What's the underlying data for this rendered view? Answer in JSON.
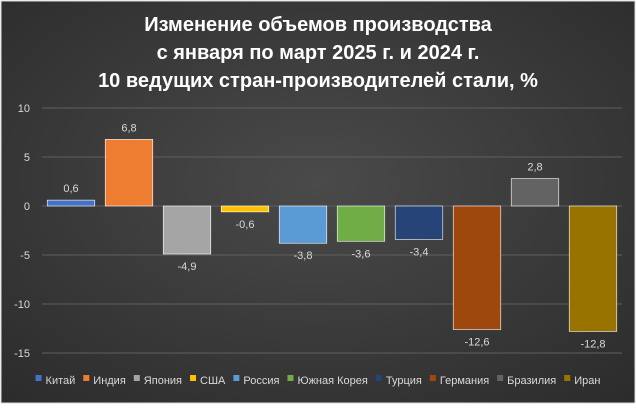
{
  "chart_data": {
    "type": "bar",
    "title": [
      "Изменение объемов производства",
      "с января по март 2025 г. и 2024 г.",
      "10 ведущих стран-производителей стали, %"
    ],
    "xlabel": "",
    "ylabel": "",
    "ylim": [
      -15,
      10
    ],
    "yticks": [
      10,
      5,
      0,
      -5,
      -10,
      -15
    ],
    "grid": true,
    "legend_position": "bottom",
    "series": [
      {
        "name": "Китай",
        "value": 0.6,
        "label": "0,6",
        "color": "#4472C4"
      },
      {
        "name": "Индия",
        "value": 6.8,
        "label": "6,8",
        "color": "#ED7D31"
      },
      {
        "name": "Япония",
        "value": -4.9,
        "label": "-4,9",
        "color": "#A5A5A5"
      },
      {
        "name": "США",
        "value": -0.6,
        "label": "-0,6",
        "color": "#FFC000"
      },
      {
        "name": "Россия",
        "value": -3.8,
        "label": "-3,8",
        "color": "#5B9BD5"
      },
      {
        "name": "Южная Корея",
        "value": -3.6,
        "label": "-3,6",
        "color": "#70AD47"
      },
      {
        "name": "Турция",
        "value": -3.4,
        "label": "-3,4",
        "color": "#264478"
      },
      {
        "name": "Германия",
        "value": -12.6,
        "label": "-12,6",
        "color": "#9E480E"
      },
      {
        "name": "Бразилия",
        "value": 2.8,
        "label": "2,8",
        "color": "#636363"
      },
      {
        "name": "Иран",
        "value": -12.8,
        "label": "-12,8",
        "color": "#997300"
      }
    ]
  }
}
